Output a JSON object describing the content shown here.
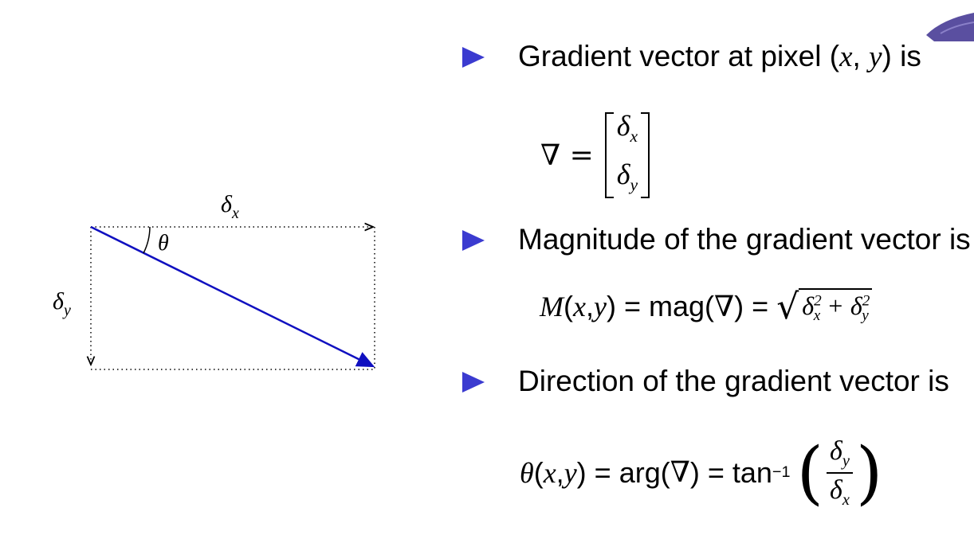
{
  "bullets": [
    {
      "text": "Gradient vector at pixel (x, y) is"
    },
    {
      "text": "Magnitude of the gradient vector is"
    },
    {
      "text": "Direction of the gradient vector is"
    }
  ],
  "equations": {
    "gradient": {
      "lhs": "∇ =",
      "row1": "δx",
      "row2": "δy"
    },
    "magnitude": {
      "lhs": "M(x, y) = mag(∇) =",
      "radicand": "δx² + δy²"
    },
    "direction": {
      "lhs": "θ(x, y) = arg(∇) = tan⁻¹",
      "numerator": "δy",
      "denominator": "δx"
    }
  },
  "diagram": {
    "label_top": "δx",
    "label_left": "δy",
    "label_angle": "θ",
    "vector_color": "#1010c0",
    "bullet_color": "#3b3bd0"
  }
}
